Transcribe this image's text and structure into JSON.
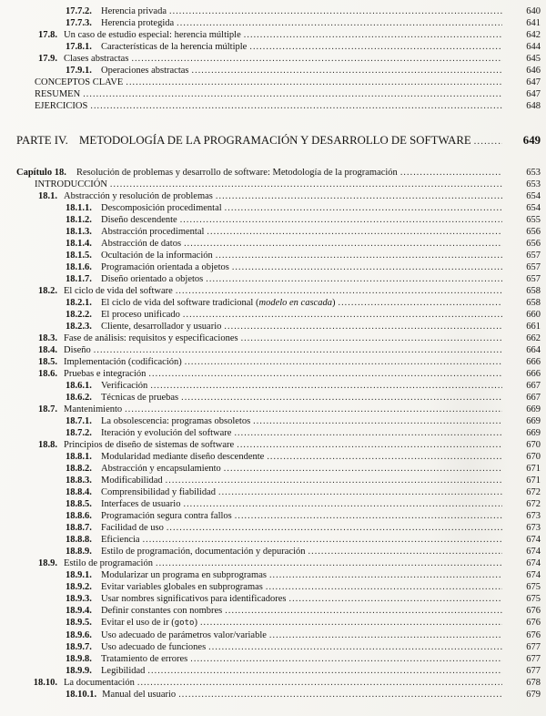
{
  "document": {
    "kind": "table-of-contents",
    "language": "es"
  },
  "toc": {
    "entries": [
      {
        "level": "sub",
        "num": "17.7.2.",
        "title": "Herencia privada",
        "page": "640"
      },
      {
        "level": "sub",
        "num": "17.7.3.",
        "title": "Herencia protegida",
        "page": "641"
      },
      {
        "level": "sec",
        "num": "17.8.",
        "title": "Un caso de estudio especial: herencia múltiple",
        "page": "642"
      },
      {
        "level": "sub",
        "num": "17.8.1.",
        "title": "Características de la herencia múltiple",
        "page": "644"
      },
      {
        "level": "sec",
        "num": "17.9.",
        "title": "Clases abstractas",
        "page": "645"
      },
      {
        "level": "sub",
        "num": "17.9.1.",
        "title": "Operaciones abstractas",
        "page": "646"
      },
      {
        "level": "front",
        "num": "",
        "title": "CONCEPTOS CLAVE",
        "page": "647"
      },
      {
        "level": "front",
        "num": "",
        "title": "RESUMEN",
        "page": "647"
      },
      {
        "level": "front",
        "num": "",
        "title": "EJERCICIOS",
        "page": "648"
      },
      {
        "level": "part",
        "num": "PARTE IV.",
        "title": "METODOLOGÍA DE LA PROGRAMACIÓN Y DESARROLLO DE SOFTWARE",
        "page": "649"
      },
      {
        "level": "chapter",
        "num": "Capítulo 18.",
        "title": "Resolución de problemas y desarrollo de software: Metodología de la programación",
        "page": "653"
      },
      {
        "level": "front",
        "num": "",
        "title": "INTRODUCCIÓN",
        "page": "653"
      },
      {
        "level": "sec",
        "num": "18.1.",
        "title": "Abstracción y resolución de problemas",
        "page": "654"
      },
      {
        "level": "sub",
        "num": "18.1.1.",
        "title": "Descomposición procedimental",
        "page": "654"
      },
      {
        "level": "sub",
        "num": "18.1.2.",
        "title": "Diseño descendente",
        "page": "655"
      },
      {
        "level": "sub",
        "num": "18.1.3.",
        "title": "Abstracción procedimental",
        "page": "656"
      },
      {
        "level": "sub",
        "num": "18.1.4.",
        "title": "Abstracción de datos",
        "page": "656"
      },
      {
        "level": "sub",
        "num": "18.1.5.",
        "title": "Ocultación de la información",
        "page": "657"
      },
      {
        "level": "sub",
        "num": "18.1.6.",
        "title": "Programación orientada a objetos",
        "page": "657"
      },
      {
        "level": "sub",
        "num": "18.1.7.",
        "title": "Diseño orientado a objetos",
        "page": "657"
      },
      {
        "level": "sec",
        "num": "18.2.",
        "title": "El ciclo de vida del software",
        "page": "658"
      },
      {
        "level": "sub",
        "num": "18.2.1.",
        "segments": [
          {
            "text": "El ciclo de vida del software tradicional ("
          },
          {
            "text": "modelo en cascada",
            "style": "italic"
          },
          {
            "text": ")"
          }
        ],
        "page": "658"
      },
      {
        "level": "sub",
        "num": "18.2.2.",
        "title": "El proceso unificado",
        "page": "660"
      },
      {
        "level": "sub",
        "num": "18.2.3.",
        "title": "Cliente, desarrollador y usuario",
        "page": "661"
      },
      {
        "level": "sec",
        "num": "18.3.",
        "title": "Fase de análisis: requisitos y especificaciones",
        "page": "662"
      },
      {
        "level": "sec",
        "num": "18.4.",
        "title": "Diseño",
        "page": "664"
      },
      {
        "level": "sec",
        "num": "18.5.",
        "title": "Implementación (codificación)",
        "page": "666"
      },
      {
        "level": "sec",
        "num": "18.6.",
        "title": "Pruebas e integración",
        "page": "666"
      },
      {
        "level": "sub",
        "num": "18.6.1.",
        "title": "Verificación",
        "page": "667"
      },
      {
        "level": "sub",
        "num": "18.6.2.",
        "title": "Técnicas de pruebas",
        "page": "667"
      },
      {
        "level": "sec",
        "num": "18.7.",
        "title": "Mantenimiento",
        "page": "669"
      },
      {
        "level": "sub",
        "num": "18.7.1.",
        "title": "La obsolescencia: programas obsoletos",
        "page": "669"
      },
      {
        "level": "sub",
        "num": "18.7.2.",
        "title": "Iteración y evolución del software",
        "page": "669"
      },
      {
        "level": "sec",
        "num": "18.8.",
        "title": "Principios de diseño de sistemas de software",
        "page": "670"
      },
      {
        "level": "sub",
        "num": "18.8.1.",
        "title": "Modularidad mediante diseño descendente",
        "page": "670"
      },
      {
        "level": "sub",
        "num": "18.8.2.",
        "title": "Abstracción y encapsulamiento",
        "page": "671"
      },
      {
        "level": "sub",
        "num": "18.8.3.",
        "title": "Modificabilidad",
        "page": "671"
      },
      {
        "level": "sub",
        "num": "18.8.4.",
        "title": "Comprensibilidad y fiabilidad",
        "page": "672"
      },
      {
        "level": "sub",
        "num": "18.8.5.",
        "title": "Interfaces de usuario",
        "page": "672"
      },
      {
        "level": "sub",
        "num": "18.8.6.",
        "title": "Programación segura contra fallos",
        "page": "673"
      },
      {
        "level": "sub",
        "num": "18.8.7.",
        "title": "Facilidad de uso",
        "page": "673"
      },
      {
        "level": "sub",
        "num": "18.8.8.",
        "title": "Eficiencia",
        "page": "674"
      },
      {
        "level": "sub",
        "num": "18.8.9.",
        "title": "Estilo de programación, documentación y depuración",
        "page": "674"
      },
      {
        "level": "sec",
        "num": "18.9.",
        "title": "Estilo de programación",
        "page": "674"
      },
      {
        "level": "sub",
        "num": "18.9.1.",
        "title": "Modularizar un programa en subprogramas",
        "page": "674"
      },
      {
        "level": "sub",
        "num": "18.9.2.",
        "title": "Evitar variables globales en subprogramas",
        "page": "675"
      },
      {
        "level": "sub",
        "num": "18.9.3.",
        "title": "Usar nombres significativos para identificadores",
        "page": "675"
      },
      {
        "level": "sub",
        "num": "18.9.4.",
        "title": "Definir constantes con nombres",
        "page": "676"
      },
      {
        "level": "sub",
        "num": "18.9.5.",
        "segments": [
          {
            "text": "Evitar el uso de ir ("
          },
          {
            "text": "goto",
            "style": "mono"
          },
          {
            "text": ")"
          }
        ],
        "page": "676"
      },
      {
        "level": "sub",
        "num": "18.9.6.",
        "title": "Uso adecuado de parámetros valor/variable",
        "page": "676"
      },
      {
        "level": "sub",
        "num": "18.9.7.",
        "title": "Uso adecuado de funciones",
        "page": "677"
      },
      {
        "level": "sub",
        "num": "18.9.8.",
        "title": "Tratamiento de errores",
        "page": "677"
      },
      {
        "level": "sub",
        "num": "18.9.9.",
        "title": "Legibilidad",
        "page": "677"
      },
      {
        "level": "sec",
        "num": "18.10.",
        "title": "La documentación",
        "page": "678"
      },
      {
        "level": "sub",
        "num": "18.10.1.",
        "title": "Manual del usuario",
        "page": "679"
      }
    ]
  }
}
